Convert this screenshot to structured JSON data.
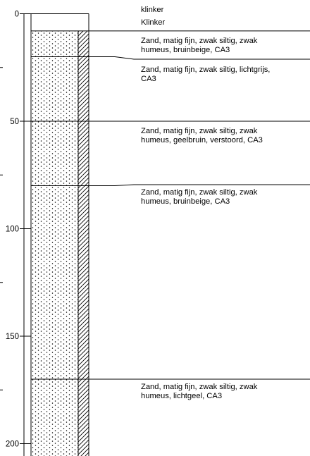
{
  "depth_axis": {
    "ticks": [
      {
        "depth": 0,
        "label": "0"
      },
      {
        "depth": 50,
        "label": "50"
      },
      {
        "depth": 100,
        "label": "100"
      },
      {
        "depth": 150,
        "label": "150"
      },
      {
        "depth": 200,
        "label": "200"
      }
    ],
    "minor_ticks": [
      25,
      75,
      125,
      175
    ]
  },
  "column": {
    "layers": [
      {
        "top": 0,
        "bottom": 8,
        "fill": "blank"
      },
      {
        "top": 8,
        "bottom": 20,
        "fill": "sand"
      },
      {
        "top": 20,
        "bottom": 50,
        "fill": "sand"
      },
      {
        "top": 50,
        "bottom": 80,
        "fill": "sand"
      },
      {
        "top": 80,
        "bottom": 170,
        "fill": "sand"
      },
      {
        "top": 170,
        "bottom": 212,
        "fill": "sand"
      }
    ]
  },
  "descriptions": [
    {
      "text": "klinker",
      "boundary": null
    },
    {
      "text": "Klinker",
      "boundary": 0
    },
    {
      "text": "Zand, matig fijn, zwak siltig, zwak\nhumeus, bruinbeige, CA3",
      "boundary": 8
    },
    {
      "text": "Zand, matig fijn, zwak siltig, lichtgrijs,\nCA3",
      "boundary": 20
    },
    {
      "text": "Zand, matig fijn, zwak siltig, zwak\nhumeus, geelbruin, verstoord, CA3",
      "boundary": 50
    },
    {
      "text": "Zand, matig fijn, zwak siltig, zwak\nhumeus, bruinbeige, CA3",
      "boundary": 80
    },
    {
      "text": "Zand, matig fijn, zwak siltig, zwak\nhumeus, lichtgeel, CA3",
      "boundary": 170
    }
  ]
}
